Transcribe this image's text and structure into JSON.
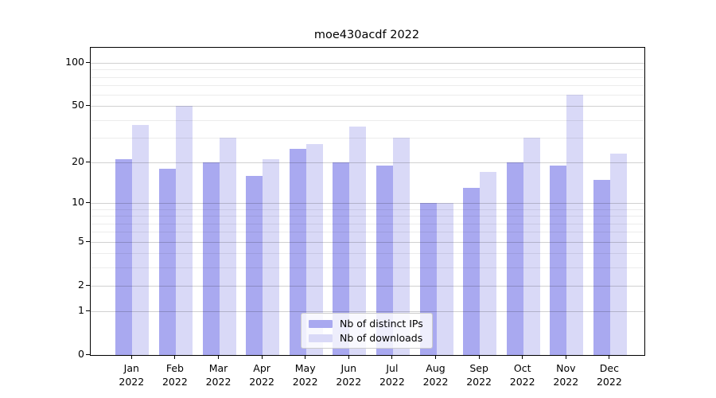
{
  "title": "moe430acdf 2022",
  "chart_data": {
    "type": "bar",
    "title": "moe430acdf 2022",
    "categories": [
      "Jan",
      "Feb",
      "Mar",
      "Apr",
      "May",
      "Jun",
      "Jul",
      "Aug",
      "Sep",
      "Oct",
      "Nov",
      "Dec"
    ],
    "year": "2022",
    "series": [
      {
        "name": "Nb of distinct IPs",
        "color": "#a9a9f0",
        "values": [
          21,
          18,
          20,
          16,
          25,
          20,
          19,
          10,
          13,
          20,
          19,
          15
        ]
      },
      {
        "name": "Nb of downloads",
        "color": "#d9d9f7",
        "values": [
          37,
          50,
          30,
          21,
          27,
          36,
          30,
          10,
          17,
          30,
          60,
          23
        ]
      }
    ],
    "xlabel": "",
    "ylabel": "",
    "y_scale": "log10(value+1)",
    "y_major_ticks": [
      100,
      50,
      20,
      10,
      5,
      2,
      1,
      0
    ],
    "y_minor_ticks": [
      3,
      4,
      6,
      7,
      8,
      9,
      30,
      40,
      60,
      70,
      80,
      90
    ],
    "ylim": [
      0,
      127
    ],
    "grid": true,
    "grid_over_bars": true,
    "legend_position": "lower center",
    "frame_color": "#000000",
    "background_color": "#ffffff"
  },
  "legend": {
    "items": [
      {
        "label": "Nb of distinct IPs",
        "color": "#a9a9f0"
      },
      {
        "label": "Nb of downloads",
        "color": "#d9d9f7"
      }
    ]
  }
}
